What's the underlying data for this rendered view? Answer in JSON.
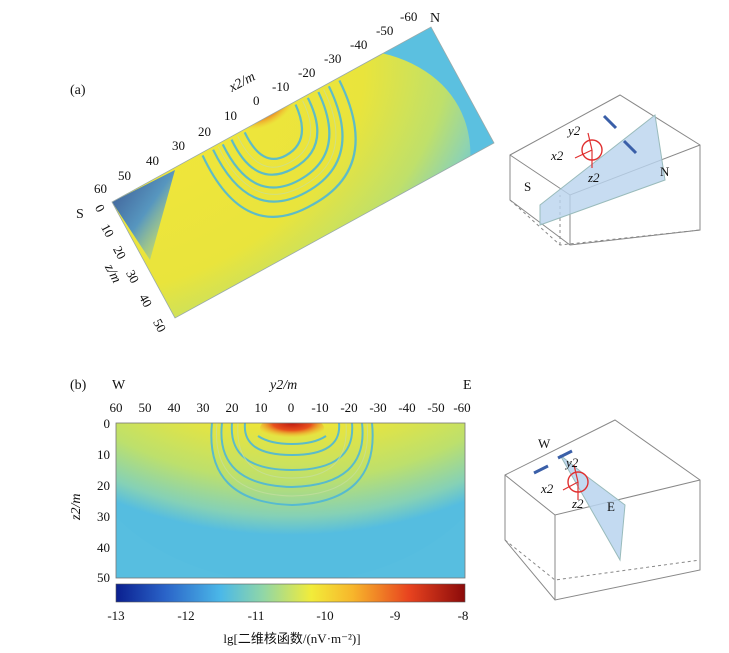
{
  "chart_data": [
    {
      "type": "heatmap",
      "panel_label": "(a)",
      "title": "",
      "x_axis": {
        "label": "x2/m",
        "ticks": [
          60,
          50,
          40,
          30,
          20,
          10,
          0,
          -10,
          -20,
          -30,
          -40,
          -50,
          -60
        ]
      },
      "y_axis": {
        "label": "z/m",
        "ticks": [
          0,
          10,
          20,
          30,
          40,
          50
        ]
      },
      "direction_labels": {
        "left": "S",
        "right": "N"
      },
      "inset": {
        "axis_labels": [
          "x2",
          "y2",
          "z2"
        ],
        "direction_labels": [
          "S",
          "N"
        ]
      }
    },
    {
      "type": "heatmap",
      "panel_label": "(b)",
      "title": "",
      "x_axis": {
        "label": "y2/m",
        "ticks": [
          60,
          50,
          40,
          30,
          20,
          10,
          0,
          -10,
          -20,
          -30,
          -40,
          -50,
          -60
        ]
      },
      "y_axis": {
        "label": "z2/m",
        "ticks": [
          0,
          10,
          20,
          30,
          40,
          50
        ]
      },
      "direction_labels": {
        "left": "W",
        "right": "E"
      },
      "inset": {
        "axis_labels": [
          "x2",
          "y2",
          "z2"
        ],
        "direction_labels": [
          "W",
          "E"
        ]
      }
    }
  ],
  "colorbar": {
    "ticks": [
      -13,
      -12,
      -11,
      -10,
      -9,
      -8
    ],
    "range": [
      -13,
      -8
    ],
    "label": "lg[二维核函数/(nV·m⁻²)]",
    "colors": [
      "#0a1f8f",
      "#2a63c8",
      "#4bb8e8",
      "#8fd6a8",
      "#f2ec3a",
      "#f7b52b",
      "#e8431f",
      "#8b0a0a"
    ]
  }
}
